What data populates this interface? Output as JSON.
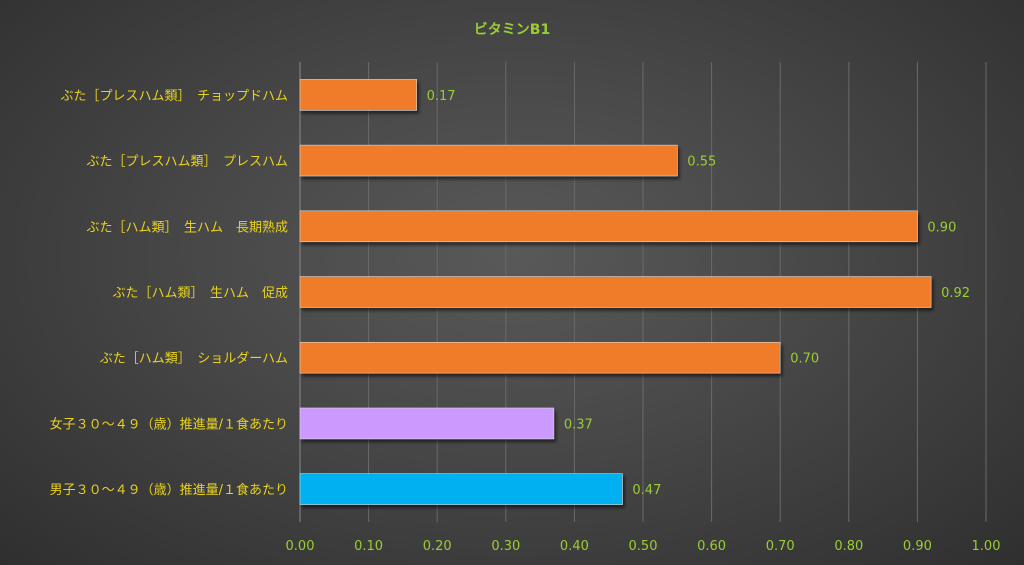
{
  "chart_data": {
    "type": "bar",
    "orientation": "horizontal",
    "title": "ビタミンB1",
    "xlabel": "",
    "ylabel": "",
    "xlim": [
      0,
      1.0
    ],
    "x_ticks": [
      "0.00",
      "0.10",
      "0.20",
      "0.30",
      "0.40",
      "0.50",
      "0.60",
      "0.70",
      "0.80",
      "0.90",
      "1.00"
    ],
    "grid": true,
    "legend": "none",
    "categories": [
      "ぶた［プレスハム類］　チョップドハム",
      "ぶた［プレスハム類］　プレスハム",
      "ぶた［ハム類］　生ハム　長期熟成",
      "ぶた［ハム類］　生ハム　促成",
      "ぶた［ハム類］　ショルダーハム",
      "女子３０～４９（歳）推進量/１食あたり",
      "男子３０～４９（歳）推進量/１食あたり"
    ],
    "values": [
      0.17,
      0.55,
      0.9,
      0.92,
      0.7,
      0.37,
      0.47
    ],
    "value_labels": [
      "0.17",
      "0.55",
      "0.90",
      "0.92",
      "0.70",
      "0.37",
      "0.47"
    ],
    "bar_colors": [
      "#F07B2A",
      "#F07B2A",
      "#F07B2A",
      "#F07B2A",
      "#F07B2A",
      "#CC99FF",
      "#00B0F0"
    ]
  }
}
